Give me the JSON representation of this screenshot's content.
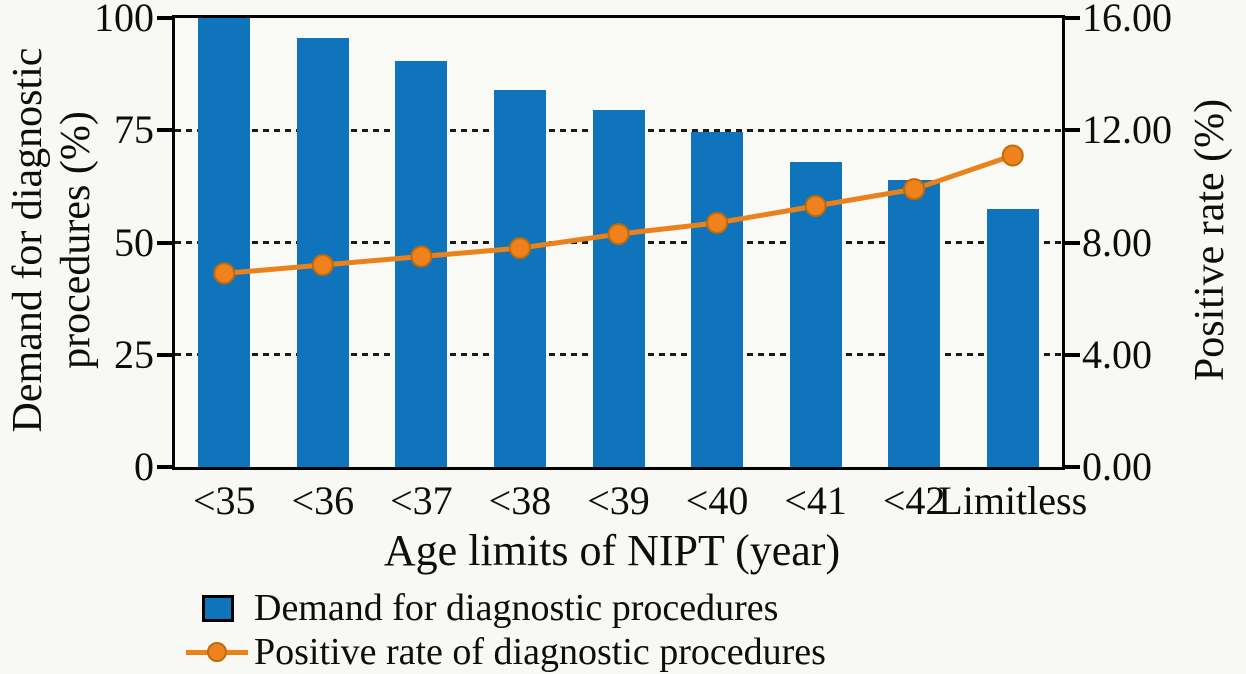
{
  "chart_data": {
    "type": "combo",
    "title": "",
    "categories": [
      "<35",
      "<36",
      "<37",
      "<38",
      "<39",
      "<40",
      "<41",
      "<42",
      "Limitless"
    ],
    "series": [
      {
        "name": "Demand for diagnostic procedures",
        "type": "bar",
        "axis": "left",
        "color": "#0f74bb",
        "values": [
          100,
          95.5,
          90.5,
          84,
          79.5,
          74.5,
          68,
          64,
          57.5
        ]
      },
      {
        "name": "Positive rate of diagnostic procedures",
        "type": "line",
        "axis": "right",
        "color": "#ea821c",
        "marker_fill": "#f0821e",
        "marker_edge": "#c06a0a",
        "values": [
          6.9,
          7.2,
          7.5,
          7.8,
          8.3,
          8.7,
          9.3,
          9.9,
          11.1
        ]
      }
    ],
    "xlabel": "Age limits of NIPT (year)",
    "ylabel_left_lines": [
      "Demand for diagnostic",
      "procedures (%)"
    ],
    "ylabel_right": "Positive rate (%)",
    "y_left": {
      "min": 0,
      "max": 100,
      "ticks": [
        {
          "v": 0,
          "label": "0"
        },
        {
          "v": 25,
          "label": "25"
        },
        {
          "v": 50,
          "label": "50"
        },
        {
          "v": 75,
          "label": "75"
        },
        {
          "v": 100,
          "label": "100"
        }
      ]
    },
    "y_right": {
      "min": 0,
      "max": 16,
      "ticks": [
        {
          "v": 0,
          "label": "0.00"
        },
        {
          "v": 4,
          "label": "4.00"
        },
        {
          "v": 8,
          "label": "8.00"
        },
        {
          "v": 12,
          "label": "12.00"
        },
        {
          "v": 16,
          "label": "16.00"
        }
      ]
    },
    "gridlines_left_values": [
      25,
      50,
      75
    ],
    "grid_style": "dotted",
    "legend_position": "bottom-left",
    "colors": {
      "frame": "#000000",
      "grid": "#1a1a1a",
      "background": "#f8f8f5",
      "text": "#0d0d0d"
    }
  }
}
